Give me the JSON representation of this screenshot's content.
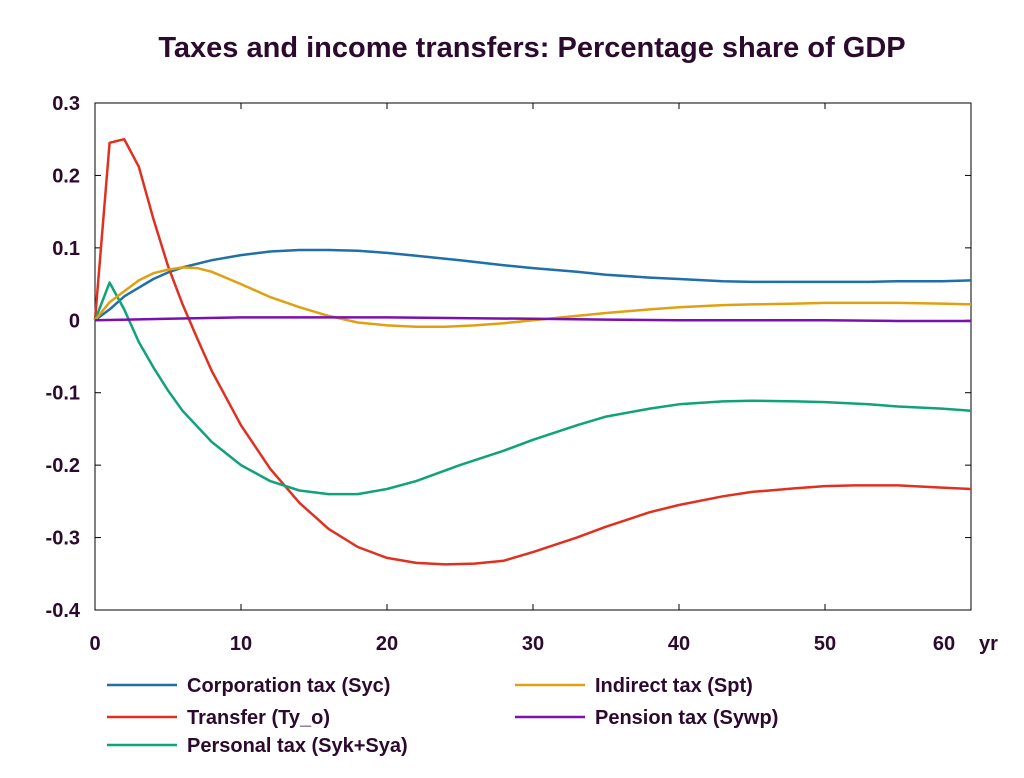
{
  "chart_data": {
    "type": "line",
    "title": "Taxes and income transfers: Percentage share of GDP",
    "xlabel": "",
    "ylabel": "",
    "x_unit_label": "yr",
    "xlim": [
      0,
      60
    ],
    "ylim": [
      -0.4,
      0.3
    ],
    "x_ticks": [
      0,
      10,
      20,
      30,
      40,
      50,
      60
    ],
    "x_tick_labels": [
      "0",
      "10",
      "20",
      "30",
      "40",
      "50",
      "60 yr"
    ],
    "y_ticks": [
      -0.4,
      -0.3,
      -0.2,
      -0.1,
      0,
      0.1,
      0.2,
      0.3
    ],
    "y_tick_labels": [
      "-0.4",
      "-0.3",
      "-0.2",
      "-0.1",
      "0",
      "0.1",
      "0.2",
      "0.3"
    ],
    "grid": false,
    "legend_position": "bottom",
    "series": [
      {
        "name": "Corporation tax (Syc)",
        "color": "#1f6fab",
        "points": [
          [
            0,
            0
          ],
          [
            1,
            0.015
          ],
          [
            2,
            0.033
          ],
          [
            3,
            0.045
          ],
          [
            4,
            0.057
          ],
          [
            5,
            0.066
          ],
          [
            6,
            0.073
          ],
          [
            8,
            0.083
          ],
          [
            10,
            0.09
          ],
          [
            12,
            0.095
          ],
          [
            14,
            0.097
          ],
          [
            16,
            0.097
          ],
          [
            18,
            0.096
          ],
          [
            20,
            0.093
          ],
          [
            22,
            0.089
          ],
          [
            25,
            0.083
          ],
          [
            28,
            0.076
          ],
          [
            30,
            0.072
          ],
          [
            33,
            0.067
          ],
          [
            35,
            0.063
          ],
          [
            38,
            0.059
          ],
          [
            40,
            0.057
          ],
          [
            43,
            0.054
          ],
          [
            45,
            0.053
          ],
          [
            48,
            0.053
          ],
          [
            50,
            0.053
          ],
          [
            53,
            0.053
          ],
          [
            55,
            0.054
          ],
          [
            58,
            0.054
          ],
          [
            60,
            0.055
          ]
        ]
      },
      {
        "name": "Transfer (Ty_o)",
        "color": "#e03020",
        "points": [
          [
            0,
            0
          ],
          [
            1,
            0.245
          ],
          [
            2,
            0.25
          ],
          [
            3,
            0.212
          ],
          [
            4,
            0.14
          ],
          [
            5,
            0.075
          ],
          [
            6,
            0.022
          ],
          [
            7,
            -0.025
          ],
          [
            8,
            -0.07
          ],
          [
            10,
            -0.145
          ],
          [
            12,
            -0.205
          ],
          [
            14,
            -0.252
          ],
          [
            16,
            -0.288
          ],
          [
            18,
            -0.313
          ],
          [
            20,
            -0.328
          ],
          [
            22,
            -0.335
          ],
          [
            24,
            -0.337
          ],
          [
            26,
            -0.336
          ],
          [
            28,
            -0.332
          ],
          [
            30,
            -0.32
          ],
          [
            33,
            -0.3
          ],
          [
            35,
            -0.285
          ],
          [
            38,
            -0.265
          ],
          [
            40,
            -0.255
          ],
          [
            43,
            -0.243
          ],
          [
            45,
            -0.237
          ],
          [
            48,
            -0.232
          ],
          [
            50,
            -0.229
          ],
          [
            52,
            -0.228
          ],
          [
            55,
            -0.228
          ],
          [
            58,
            -0.231
          ],
          [
            60,
            -0.233
          ]
        ]
      },
      {
        "name": "Personal tax (Syk+Sya)",
        "color": "#10a27a",
        "points": [
          [
            0,
            0
          ],
          [
            1,
            0.052
          ],
          [
            2,
            0.015
          ],
          [
            3,
            -0.03
          ],
          [
            4,
            -0.065
          ],
          [
            5,
            -0.097
          ],
          [
            6,
            -0.125
          ],
          [
            8,
            -0.168
          ],
          [
            10,
            -0.2
          ],
          [
            12,
            -0.222
          ],
          [
            14,
            -0.235
          ],
          [
            16,
            -0.24
          ],
          [
            18,
            -0.24
          ],
          [
            20,
            -0.233
          ],
          [
            22,
            -0.222
          ],
          [
            25,
            -0.2
          ],
          [
            28,
            -0.18
          ],
          [
            30,
            -0.165
          ],
          [
            33,
            -0.145
          ],
          [
            35,
            -0.133
          ],
          [
            38,
            -0.122
          ],
          [
            40,
            -0.116
          ],
          [
            43,
            -0.112
          ],
          [
            45,
            -0.111
          ],
          [
            48,
            -0.112
          ],
          [
            50,
            -0.113
          ],
          [
            53,
            -0.116
          ],
          [
            55,
            -0.119
          ],
          [
            58,
            -0.122
          ],
          [
            60,
            -0.125
          ]
        ]
      },
      {
        "name": "Indirect tax (Spt)",
        "color": "#e0a010",
        "points": [
          [
            0,
            0
          ],
          [
            1,
            0.025
          ],
          [
            2,
            0.04
          ],
          [
            3,
            0.055
          ],
          [
            4,
            0.065
          ],
          [
            5,
            0.07
          ],
          [
            6,
            0.073
          ],
          [
            7,
            0.072
          ],
          [
            8,
            0.067
          ],
          [
            10,
            0.05
          ],
          [
            12,
            0.032
          ],
          [
            14,
            0.018
          ],
          [
            16,
            0.006
          ],
          [
            18,
            -0.003
          ],
          [
            20,
            -0.007
          ],
          [
            22,
            -0.009
          ],
          [
            24,
            -0.009
          ],
          [
            26,
            -0.007
          ],
          [
            28,
            -0.004
          ],
          [
            30,
            0
          ],
          [
            33,
            0.006
          ],
          [
            35,
            0.01
          ],
          [
            38,
            0.015
          ],
          [
            40,
            0.018
          ],
          [
            43,
            0.021
          ],
          [
            45,
            0.022
          ],
          [
            48,
            0.023
          ],
          [
            50,
            0.024
          ],
          [
            53,
            0.024
          ],
          [
            55,
            0.024
          ],
          [
            58,
            0.023
          ],
          [
            60,
            0.022
          ]
        ]
      },
      {
        "name": "Pension tax (Sywp)",
        "color": "#7a10b0",
        "points": [
          [
            0,
            0
          ],
          [
            5,
            0.002
          ],
          [
            10,
            0.004
          ],
          [
            15,
            0.004
          ],
          [
            20,
            0.004
          ],
          [
            25,
            0.003
          ],
          [
            30,
            0.002
          ],
          [
            35,
            0.001
          ],
          [
            40,
            0
          ],
          [
            45,
            0
          ],
          [
            50,
            0
          ],
          [
            55,
            -0.001
          ],
          [
            60,
            -0.001
          ]
        ]
      }
    ]
  }
}
